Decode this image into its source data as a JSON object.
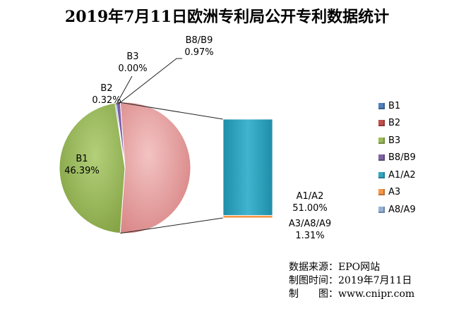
{
  "chart_data": {
    "type": "pie",
    "title": "2019年7月11日欧洲专利局公开专利数据统计",
    "pie_slices": [
      {
        "key": "b1",
        "label": "B1",
        "value": 46.39,
        "value_text": "46.39%",
        "color": "#9bbb59"
      },
      {
        "key": "b2",
        "label": "B2",
        "value": 0.32,
        "value_text": "0.32%",
        "color": "#4f81bd"
      },
      {
        "key": "b3",
        "label": "B3",
        "value": 0.0,
        "value_text": "0.00%",
        "color": "#8064a2"
      },
      {
        "key": "b8b9",
        "label": "B8/B9",
        "value": 0.97,
        "value_text": "0.97%",
        "color": "#7f5fa8"
      },
      {
        "key": "a",
        "label": "A",
        "value": 52.31,
        "value_text": "",
        "color": "#e6a2a2"
      }
    ],
    "bar_breakdown": [
      {
        "key": "a1a2",
        "label": "A1/A2",
        "value": 51.0,
        "value_text": "51.00%",
        "color": "#31a7c2"
      },
      {
        "key": "a3a8a9",
        "label": "A3/A8/A9",
        "value": 1.31,
        "value_text": "1.31%",
        "color": "#f79646"
      }
    ],
    "legend": [
      {
        "label": "B1",
        "color": "#4f81bd"
      },
      {
        "label": "B2",
        "color": "#c0504d"
      },
      {
        "label": "B3",
        "color": "#9bbb59"
      },
      {
        "label": "B8/B9",
        "color": "#8064a2"
      },
      {
        "label": "A1/A2",
        "color": "#31a7c2"
      },
      {
        "label": "A3",
        "color": "#f79646"
      },
      {
        "label": "A8/A9",
        "color": "#95b3d7"
      }
    ],
    "legend_position": "right"
  },
  "source_note": {
    "line1": "数据来源：EPO网站",
    "line2": "制图时间：2019年7月11日",
    "line3": "制　　图：www.cnipr.com"
  }
}
